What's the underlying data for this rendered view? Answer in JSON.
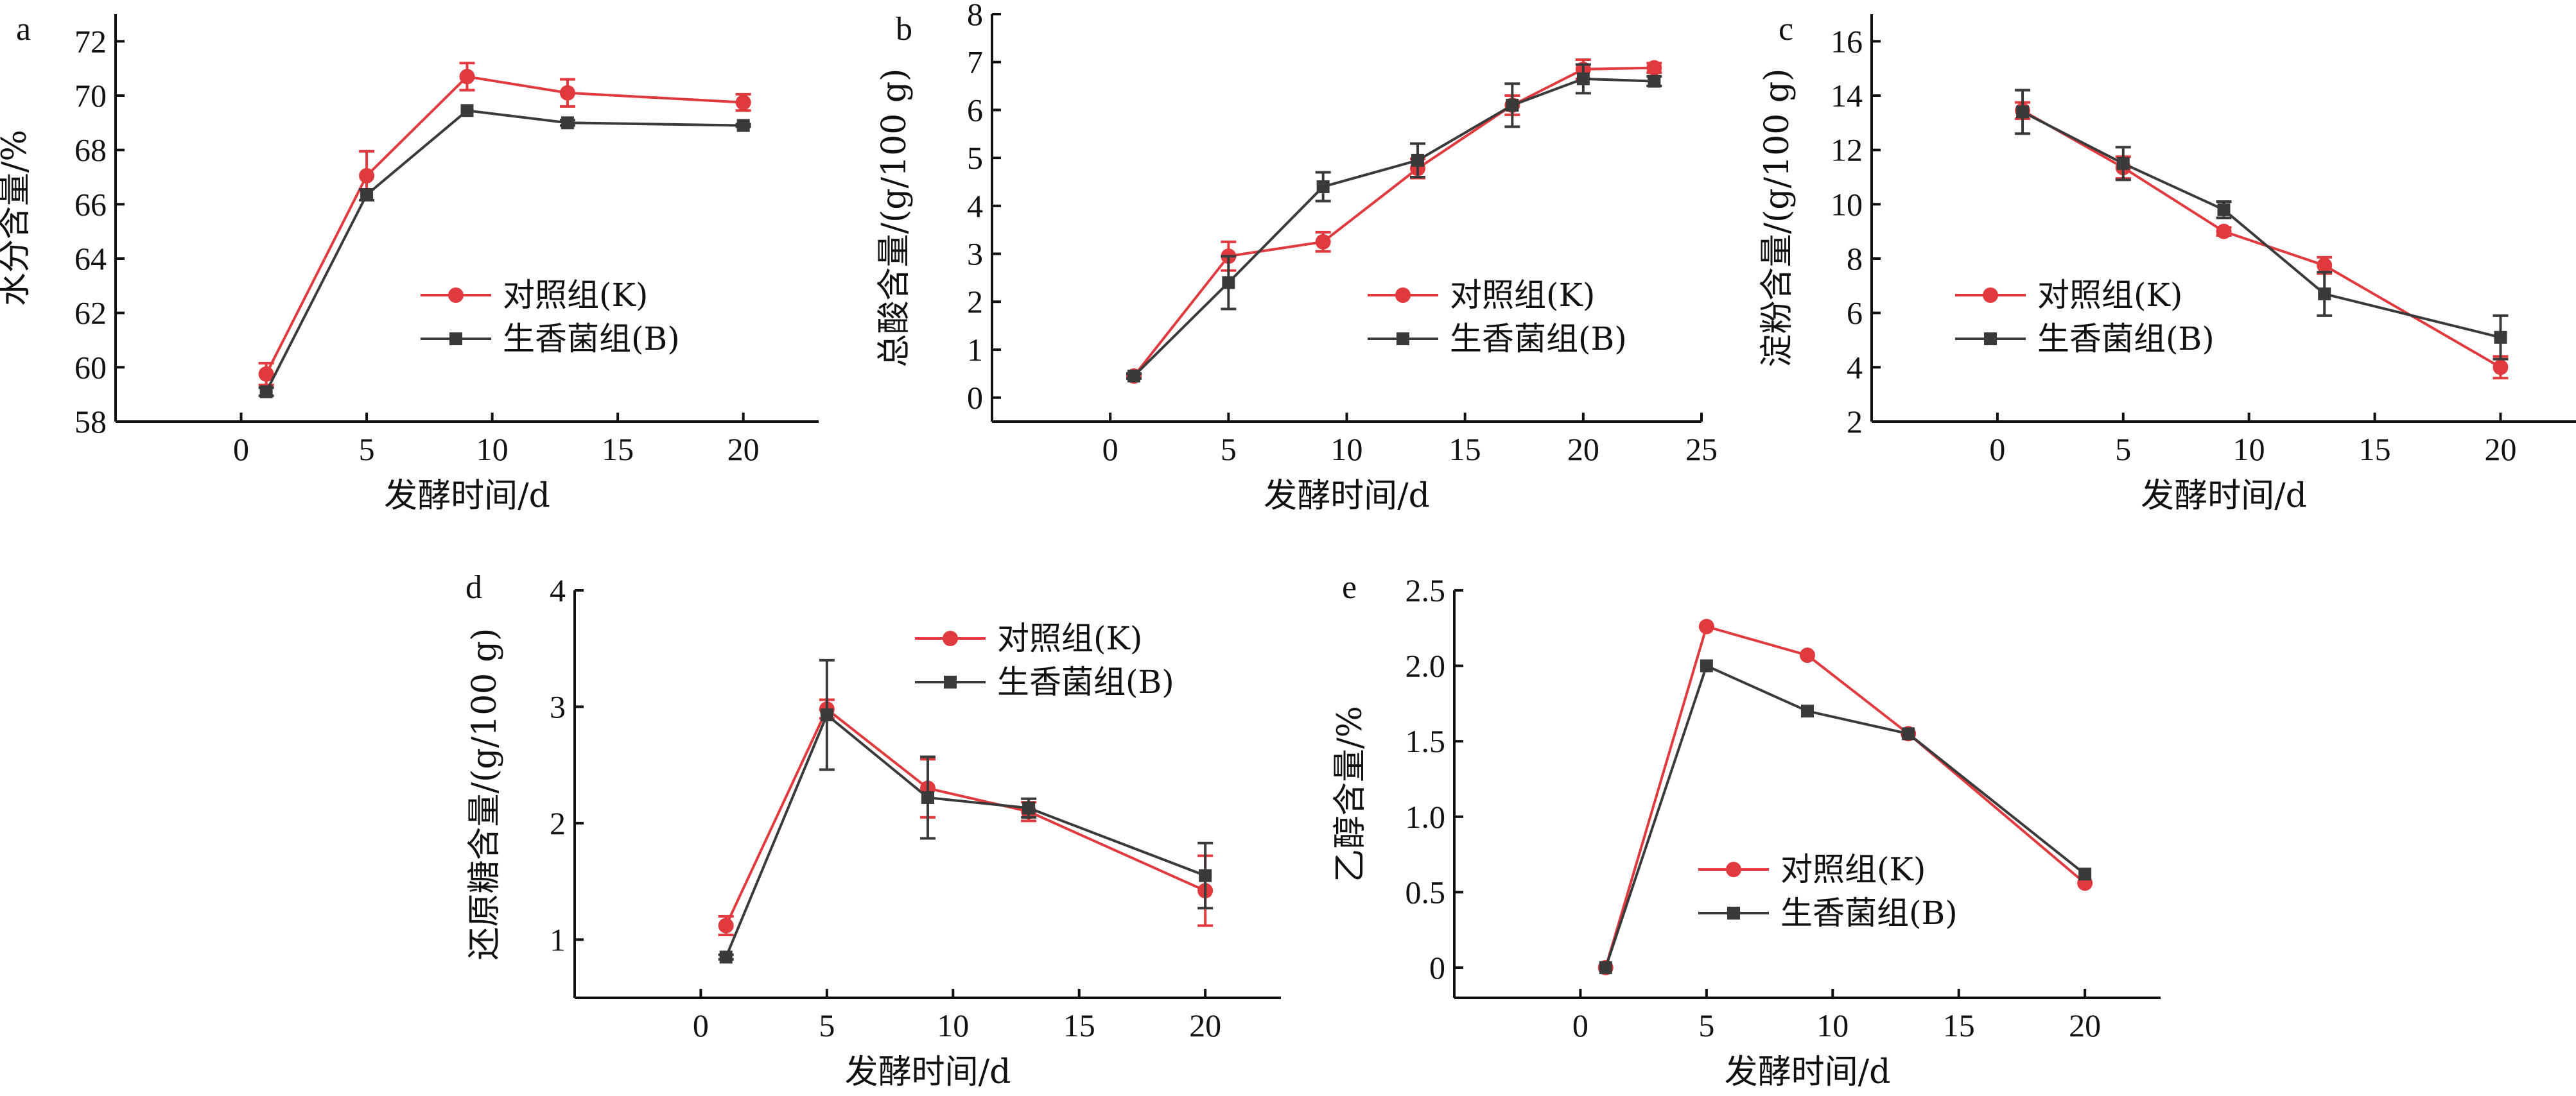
{
  "chart_data": [
    {
      "panel": "a",
      "type": "line",
      "xlabel": "发酵时间/d",
      "ylabel": "水分含量/%",
      "xlim": [
        -5,
        23
      ],
      "ylim": [
        58,
        73
      ],
      "xticks": [
        0,
        5,
        10,
        15,
        20
      ],
      "yticks": [
        58,
        60,
        62,
        64,
        66,
        68,
        70,
        72
      ],
      "series": [
        {
          "name": "对照组(K)",
          "color": "#e03a3e",
          "marker": "circle",
          "x": [
            1,
            5,
            9,
            13,
            20
          ],
          "values": [
            59.75,
            67.05,
            70.7,
            70.1,
            69.75
          ],
          "errors": [
            0.4,
            0.9,
            0.5,
            0.5,
            0.3
          ]
        },
        {
          "name": "生香菌组(B)",
          "color": "#3a3a3a",
          "marker": "square",
          "x": [
            1,
            5,
            9,
            13,
            20
          ],
          "values": [
            59.1,
            66.35,
            69.45,
            69.0,
            68.9
          ],
          "errors": [
            0.15,
            0.2,
            0.0,
            0.1,
            0.05
          ]
        }
      ]
    },
    {
      "panel": "b",
      "type": "line",
      "xlabel": "发酵时间/d",
      "ylabel": "总酸含量/(g/100 g)",
      "xlim": [
        -5,
        25
      ],
      "ylim": [
        -0.5,
        8
      ],
      "xticks": [
        0,
        5,
        10,
        15,
        20,
        25
      ],
      "yticks": [
        0,
        1,
        2,
        3,
        4,
        5,
        6,
        7,
        8
      ],
      "series": [
        {
          "name": "对照组(K)",
          "color": "#e03a3e",
          "marker": "circle",
          "x": [
            1,
            5,
            9,
            13,
            17,
            20,
            23
          ],
          "values": [
            0.45,
            2.95,
            3.25,
            4.78,
            6.1,
            6.85,
            6.88
          ],
          "errors": [
            0.05,
            0.3,
            0.2,
            0.2,
            0.2,
            0.2,
            0.1
          ]
        },
        {
          "name": "生香菌组(B)",
          "color": "#3a3a3a",
          "marker": "square",
          "x": [
            1,
            5,
            9,
            13,
            17,
            20,
            23
          ],
          "values": [
            0.45,
            2.4,
            4.4,
            4.95,
            6.1,
            6.65,
            6.6
          ],
          "errors": [
            0.05,
            0.55,
            0.3,
            0.35,
            0.45,
            0.3,
            0.1
          ]
        }
      ]
    },
    {
      "panel": "c",
      "type": "line",
      "xlabel": "发酵时间/d",
      "ylabel": "淀粉含量/(g/100 g)",
      "xlim": [
        -5,
        23
      ],
      "ylim": [
        2,
        17
      ],
      "xticks": [
        0,
        5,
        10,
        15,
        20
      ],
      "yticks": [
        2,
        4,
        6,
        8,
        10,
        12,
        14,
        16
      ],
      "series": [
        {
          "name": "对照组(K)",
          "color": "#e03a3e",
          "marker": "circle",
          "x": [
            1,
            5,
            9,
            13,
            20
          ],
          "values": [
            13.45,
            11.35,
            9.0,
            7.75,
            4.0
          ],
          "errors": [
            0.3,
            0.4,
            0.15,
            0.3,
            0.4
          ]
        },
        {
          "name": "生香菌组(B)",
          "color": "#3a3a3a",
          "marker": "square",
          "x": [
            1,
            5,
            9,
            13,
            20
          ],
          "values": [
            13.4,
            11.5,
            9.8,
            6.7,
            5.1
          ],
          "errors": [
            0.8,
            0.6,
            0.3,
            0.8,
            0.8
          ]
        }
      ]
    },
    {
      "panel": "d",
      "type": "line",
      "xlabel": "发酵时间/d",
      "ylabel": "还原糖含量/(g/100 g)",
      "xlim": [
        -5,
        23
      ],
      "ylim": [
        0.5,
        4
      ],
      "xticks": [
        0,
        5,
        10,
        15,
        20
      ],
      "yticks": [
        1,
        2,
        3,
        4
      ],
      "series": [
        {
          "name": "对照组(K)",
          "color": "#e03a3e",
          "marker": "circle",
          "x": [
            1,
            5,
            9,
            13,
            20
          ],
          "values": [
            1.12,
            2.98,
            2.3,
            2.1,
            1.42
          ],
          "errors": [
            0.08,
            0.08,
            0.25,
            0.08,
            0.3
          ]
        },
        {
          "name": "生香菌组(B)",
          "color": "#3a3a3a",
          "marker": "square",
          "x": [
            1,
            5,
            9,
            13,
            20
          ],
          "values": [
            0.85,
            2.93,
            2.22,
            2.13,
            1.55
          ],
          "errors": [
            0.02,
            0.47,
            0.35,
            0.08,
            0.28
          ]
        }
      ]
    },
    {
      "panel": "e",
      "type": "line",
      "xlabel": "发酵时间/d",
      "ylabel": "乙醇含量/%",
      "xlim": [
        -5,
        23
      ],
      "ylim": [
        -0.2,
        2.5
      ],
      "xticks": [
        0,
        5,
        10,
        15,
        20
      ],
      "yticks": [
        0,
        0.5,
        1.0,
        1.5,
        2.0,
        2.5
      ],
      "ytick_labels": [
        "0",
        "0.5",
        "1.0",
        "1.5",
        "2.0",
        "2.5"
      ],
      "series": [
        {
          "name": "对照组(K)",
          "color": "#e03a3e",
          "marker": "circle",
          "x": [
            1,
            5,
            9,
            13,
            20
          ],
          "values": [
            0.0,
            2.26,
            2.07,
            1.55,
            0.56
          ],
          "errors": [
            0,
            0,
            0,
            0,
            0
          ]
        },
        {
          "name": "生香菌组(B)",
          "color": "#3a3a3a",
          "marker": "square",
          "x": [
            1,
            5,
            9,
            13,
            20
          ],
          "values": [
            0.0,
            2.0,
            1.7,
            1.55,
            0.62
          ],
          "errors": [
            0,
            0,
            0,
            0,
            0
          ]
        }
      ]
    }
  ]
}
